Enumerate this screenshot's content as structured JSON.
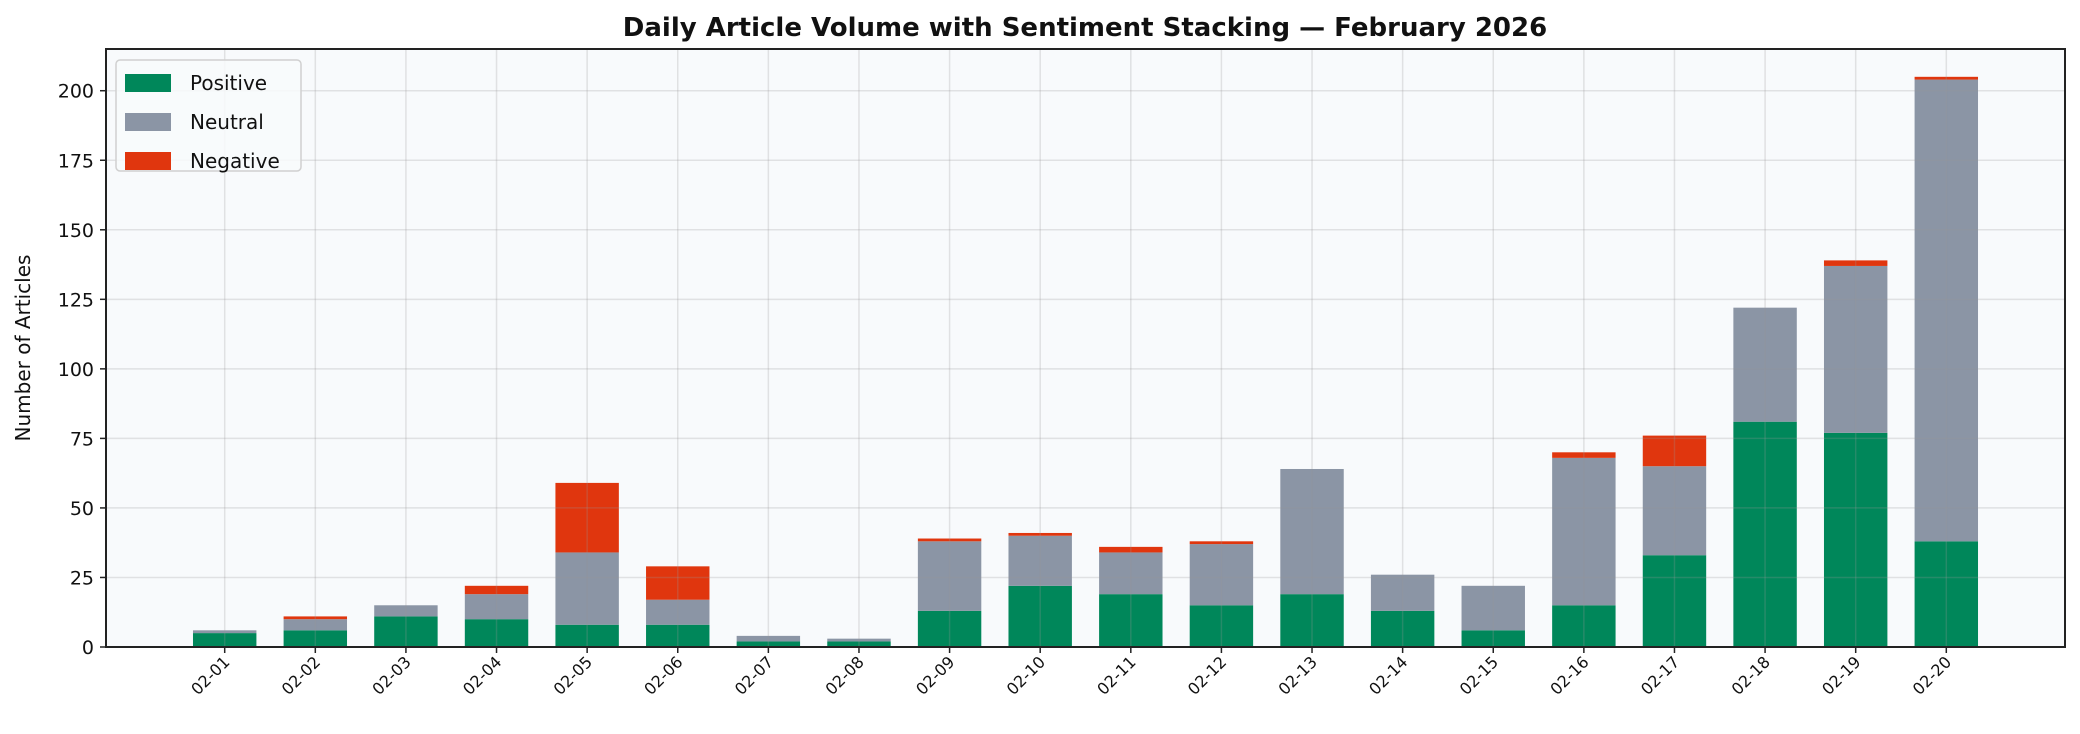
{
  "chart_data": {
    "type": "bar",
    "stacked": true,
    "title": "Daily Article Volume with Sentiment Stacking — February 2026",
    "xlabel": "",
    "ylabel": "Number of Articles",
    "ylim": [
      0,
      215
    ],
    "yticks": [
      0,
      25,
      50,
      75,
      100,
      125,
      150,
      175,
      200
    ],
    "grid": true,
    "legend_position": "top-left",
    "categories": [
      "02-01",
      "02-02",
      "02-03",
      "02-04",
      "02-05",
      "02-06",
      "02-07",
      "02-08",
      "02-09",
      "02-10",
      "02-11",
      "02-12",
      "02-13",
      "02-14",
      "02-15",
      "02-16",
      "02-17",
      "02-18",
      "02-19",
      "02-20"
    ],
    "series": [
      {
        "name": "Positive",
        "color": "#00875A",
        "values": [
          5,
          6,
          11,
          10,
          8,
          8,
          2,
          2,
          13,
          22,
          19,
          15,
          19,
          13,
          6,
          15,
          33,
          81,
          77,
          38
        ]
      },
      {
        "name": "Neutral",
        "color": "#8B95A5",
        "values": [
          1,
          4,
          4,
          9,
          26,
          9,
          2,
          1,
          25,
          18,
          15,
          22,
          45,
          13,
          16,
          53,
          32,
          41,
          60,
          166
        ]
      },
      {
        "name": "Negative",
        "color": "#E0360E",
        "values": [
          0,
          1,
          0,
          3,
          25,
          12,
          0,
          0,
          1,
          1,
          2,
          1,
          0,
          0,
          0,
          2,
          11,
          0,
          2,
          1
        ]
      }
    ],
    "colors": {
      "background": "#F8FAFC",
      "grid": "#DDDDDD",
      "axis": "#222222"
    }
  }
}
